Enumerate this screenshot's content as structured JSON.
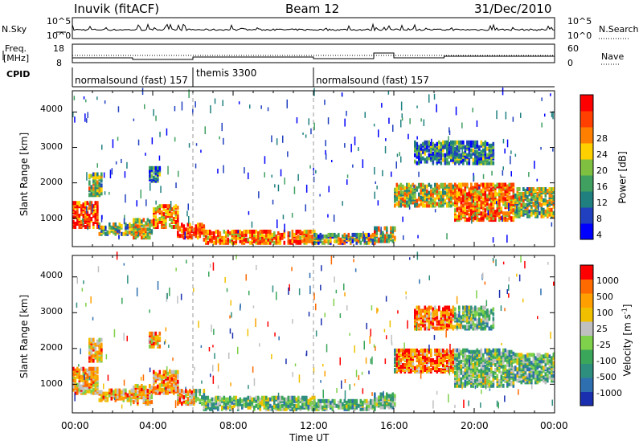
{
  "header": {
    "station": "Inuvik (fitACF)",
    "beam": "Beam 12",
    "date": "31/Dec/2010"
  },
  "side_labels": {
    "nsky": "N.Sky",
    "freq_line1": "Freq.",
    "freq_line2": "[MHz]",
    "cpid": "CPID",
    "nsearch": "N.Search",
    "nave": "Nave"
  },
  "top_panels": {
    "nsky_ticks": [
      "10^5",
      "10^0"
    ],
    "nsearch_ticks": [
      "10^5",
      "10^0"
    ],
    "freq_ticks": [
      "18",
      "8"
    ],
    "nave_ticks": [
      "60",
      "0"
    ]
  },
  "cpid_segments": [
    {
      "label": "normalsound (fast) 157",
      "start_hr": 0,
      "end_hr": 6
    },
    {
      "label": "themis 3300",
      "start_hr": 6,
      "end_hr": 12
    },
    {
      "label": "normalsound (fast) 157",
      "start_hr": 12,
      "end_hr": 24
    }
  ],
  "axes": {
    "ylabel": "Slant Range [km]",
    "xlabel": "Time UT",
    "y_ticks": [
      "4000",
      "3000",
      "2000",
      "1000"
    ],
    "x_ticks": [
      "00:00",
      "04:00",
      "08:00",
      "12:00",
      "16:00",
      "20:00",
      "00:00"
    ]
  },
  "colorbars": {
    "power": {
      "label": "Power [dB]",
      "ticks": [
        "28",
        "24",
        "20",
        "16",
        "12",
        "8",
        "4"
      ],
      "colors": [
        "#0000ff",
        "#2040c0",
        "#208080",
        "#40a060",
        "#80c040",
        "#ffd000",
        "#ff8000",
        "#ff4000",
        "#ff0000"
      ]
    },
    "velocity": {
      "label": "Velocity [m s",
      "label_sup": "-1",
      "label_end": "]",
      "ticks": [
        "1000",
        "500",
        "100",
        "25",
        "-25",
        "-100",
        "-500",
        "-1000"
      ],
      "colors": [
        "#1a2faf",
        "#2e6fb0",
        "#2f8f7f",
        "#3aa65a",
        "#7fd04a",
        "#c0c0c0",
        "#f0c000",
        "#ffa000",
        "#ff6a00",
        "#ff0000"
      ]
    }
  },
  "chart_data": {
    "type": "heatmap",
    "x_range_hours": [
      0,
      24
    ],
    "y_range_km": [
      200,
      4600
    ],
    "grid": false,
    "power_db_range": [
      0,
      30
    ],
    "velocity_range": [
      -1000,
      1000
    ]
  }
}
